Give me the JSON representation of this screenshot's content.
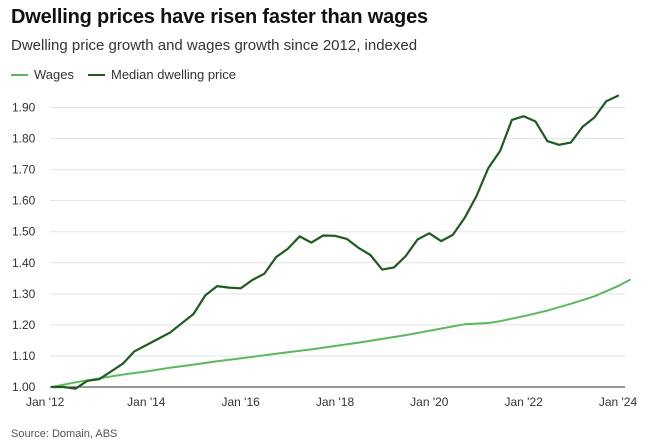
{
  "title": "Dwelling prices have risen faster than wages",
  "subtitle": "Dwelling price growth and wages growth since 2012, indexed",
  "source": "Source: Domain, ABS",
  "colors": {
    "wages": "#5cb85c",
    "dwelling": "#1e5c1e",
    "grid": "#e3e3e3",
    "axis": "#333333"
  },
  "chart_data": {
    "type": "line",
    "title": "Dwelling prices have risen faster than wages",
    "xlabel": "",
    "ylabel": "",
    "ylim": [
      1.0,
      1.95
    ],
    "xlim": [
      2012.0,
      2024.0
    ],
    "grid": true,
    "legend_placement": "top-left",
    "x_ticks": [
      {
        "x": 2012,
        "label": "Jan '12"
      },
      {
        "x": 2014,
        "label": "Jan '14"
      },
      {
        "x": 2016,
        "label": "Jan '16"
      },
      {
        "x": 2018,
        "label": "Jan '18"
      },
      {
        "x": 2020,
        "label": "Jan '20"
      },
      {
        "x": 2022,
        "label": "Jan '22"
      },
      {
        "x": 2024,
        "label": "Jan '24"
      }
    ],
    "y_ticks": [
      "1.00",
      "1.10",
      "1.20",
      "1.30",
      "1.40",
      "1.50",
      "1.60",
      "1.70",
      "1.80",
      "1.90"
    ],
    "series": [
      {
        "name": "Wages",
        "points": [
          [
            2012.0,
            1.0
          ],
          [
            2012.5,
            1.015
          ],
          [
            2013.0,
            1.028
          ],
          [
            2013.5,
            1.04
          ],
          [
            2014.0,
            1.05
          ],
          [
            2014.5,
            1.062
          ],
          [
            2015.0,
            1.072
          ],
          [
            2015.5,
            1.083
          ],
          [
            2016.0,
            1.092
          ],
          [
            2016.5,
            1.102
          ],
          [
            2017.0,
            1.112
          ],
          [
            2017.5,
            1.121
          ],
          [
            2018.0,
            1.132
          ],
          [
            2018.5,
            1.143
          ],
          [
            2019.0,
            1.155
          ],
          [
            2019.5,
            1.167
          ],
          [
            2020.0,
            1.181
          ],
          [
            2020.5,
            1.195
          ],
          [
            2020.75,
            1.202
          ],
          [
            2021.25,
            1.206
          ],
          [
            2021.5,
            1.212
          ],
          [
            2022.0,
            1.228
          ],
          [
            2022.5,
            1.246
          ],
          [
            2023.0,
            1.268
          ],
          [
            2023.5,
            1.292
          ],
          [
            2024.0,
            1.325
          ],
          [
            2024.25,
            1.345
          ]
        ]
      },
      {
        "name": "Median dwelling price",
        "points": [
          [
            2012.0,
            1.0
          ],
          [
            2012.25,
            1.0
          ],
          [
            2012.5,
            0.995
          ],
          [
            2012.75,
            1.02
          ],
          [
            2013.0,
            1.025
          ],
          [
            2013.25,
            1.05
          ],
          [
            2013.5,
            1.075
          ],
          [
            2013.75,
            1.115
          ],
          [
            2014.0,
            1.135
          ],
          [
            2014.25,
            1.155
          ],
          [
            2014.5,
            1.175
          ],
          [
            2014.75,
            1.205
          ],
          [
            2015.0,
            1.235
          ],
          [
            2015.25,
            1.295
          ],
          [
            2015.5,
            1.325
          ],
          [
            2015.75,
            1.32
          ],
          [
            2016.0,
            1.318
          ],
          [
            2016.25,
            1.345
          ],
          [
            2016.5,
            1.365
          ],
          [
            2016.75,
            1.418
          ],
          [
            2017.0,
            1.445
          ],
          [
            2017.25,
            1.485
          ],
          [
            2017.5,
            1.465
          ],
          [
            2017.75,
            1.488
          ],
          [
            2018.0,
            1.487
          ],
          [
            2018.25,
            1.477
          ],
          [
            2018.5,
            1.448
          ],
          [
            2018.75,
            1.425
          ],
          [
            2019.0,
            1.378
          ],
          [
            2019.25,
            1.385
          ],
          [
            2019.5,
            1.422
          ],
          [
            2019.75,
            1.475
          ],
          [
            2020.0,
            1.495
          ],
          [
            2020.25,
            1.47
          ],
          [
            2020.5,
            1.49
          ],
          [
            2020.75,
            1.545
          ],
          [
            2021.0,
            1.615
          ],
          [
            2021.25,
            1.705
          ],
          [
            2021.5,
            1.76
          ],
          [
            2021.75,
            1.86
          ],
          [
            2022.0,
            1.872
          ],
          [
            2022.25,
            1.855
          ],
          [
            2022.5,
            1.792
          ],
          [
            2022.75,
            1.78
          ],
          [
            2023.0,
            1.787
          ],
          [
            2023.25,
            1.838
          ],
          [
            2023.5,
            1.868
          ],
          [
            2023.75,
            1.92
          ],
          [
            2024.0,
            1.938
          ]
        ]
      }
    ]
  }
}
